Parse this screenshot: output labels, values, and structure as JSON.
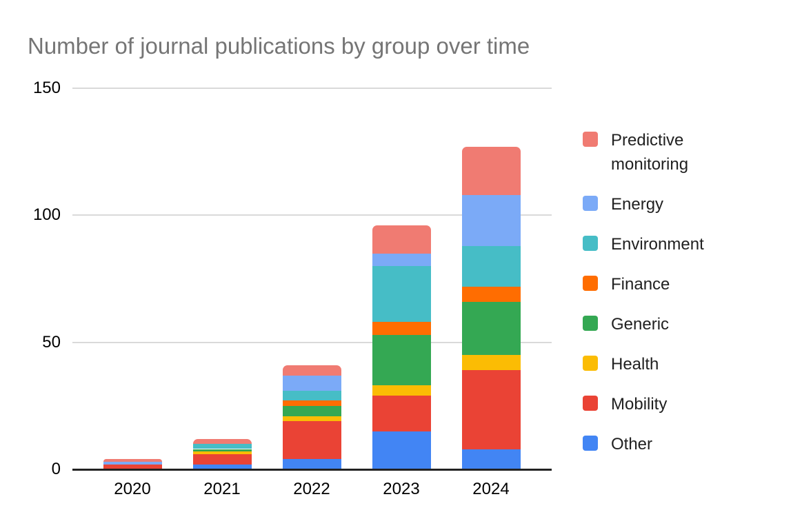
{
  "chart_data": {
    "type": "bar",
    "stacked": true,
    "title": "Number of journal publications by group over time",
    "categories": [
      "2020",
      "2021",
      "2022",
      "2023",
      "2024"
    ],
    "series": [
      {
        "name": "Predictive monitoring",
        "color": "#f07b72",
        "values": [
          1,
          2,
          4,
          11,
          19
        ]
      },
      {
        "name": "Energy",
        "color": "#7baaf7",
        "values": [
          1,
          0,
          6,
          5,
          20
        ]
      },
      {
        "name": "Environment",
        "color": "#46bdc6",
        "values": [
          0,
          2,
          4,
          22,
          16
        ]
      },
      {
        "name": "Finance",
        "color": "#ff6d01",
        "values": [
          0,
          0,
          2,
          5,
          6
        ]
      },
      {
        "name": "Generic",
        "color": "#34a853",
        "values": [
          0,
          1,
          4,
          20,
          21
        ]
      },
      {
        "name": "Health",
        "color": "#fbbc04",
        "values": [
          0,
          1,
          2,
          4,
          6
        ]
      },
      {
        "name": "Mobility",
        "color": "#ea4335",
        "values": [
          2,
          4,
          15,
          14,
          31
        ]
      },
      {
        "name": "Other",
        "color": "#4285f4",
        "values": [
          0,
          2,
          4,
          15,
          8
        ]
      }
    ],
    "stack_order_bottom_to_top": [
      "Other",
      "Mobility",
      "Health",
      "Generic",
      "Finance",
      "Environment",
      "Energy",
      "Predictive monitoring"
    ],
    "totals": [
      4,
      12,
      41,
      96,
      127
    ],
    "y_ticks": [
      0,
      50,
      100,
      150
    ],
    "ylim": [
      0,
      150
    ],
    "xlabel": "",
    "ylabel": "",
    "grid": true,
    "legend_position": "right",
    "colors": {
      "title_text": "#757575",
      "axis_text": "#000000",
      "legend_text": "#212121",
      "gridline": "#d9d9d9",
      "axis_line": "#222222",
      "background": "#ffffff"
    }
  }
}
